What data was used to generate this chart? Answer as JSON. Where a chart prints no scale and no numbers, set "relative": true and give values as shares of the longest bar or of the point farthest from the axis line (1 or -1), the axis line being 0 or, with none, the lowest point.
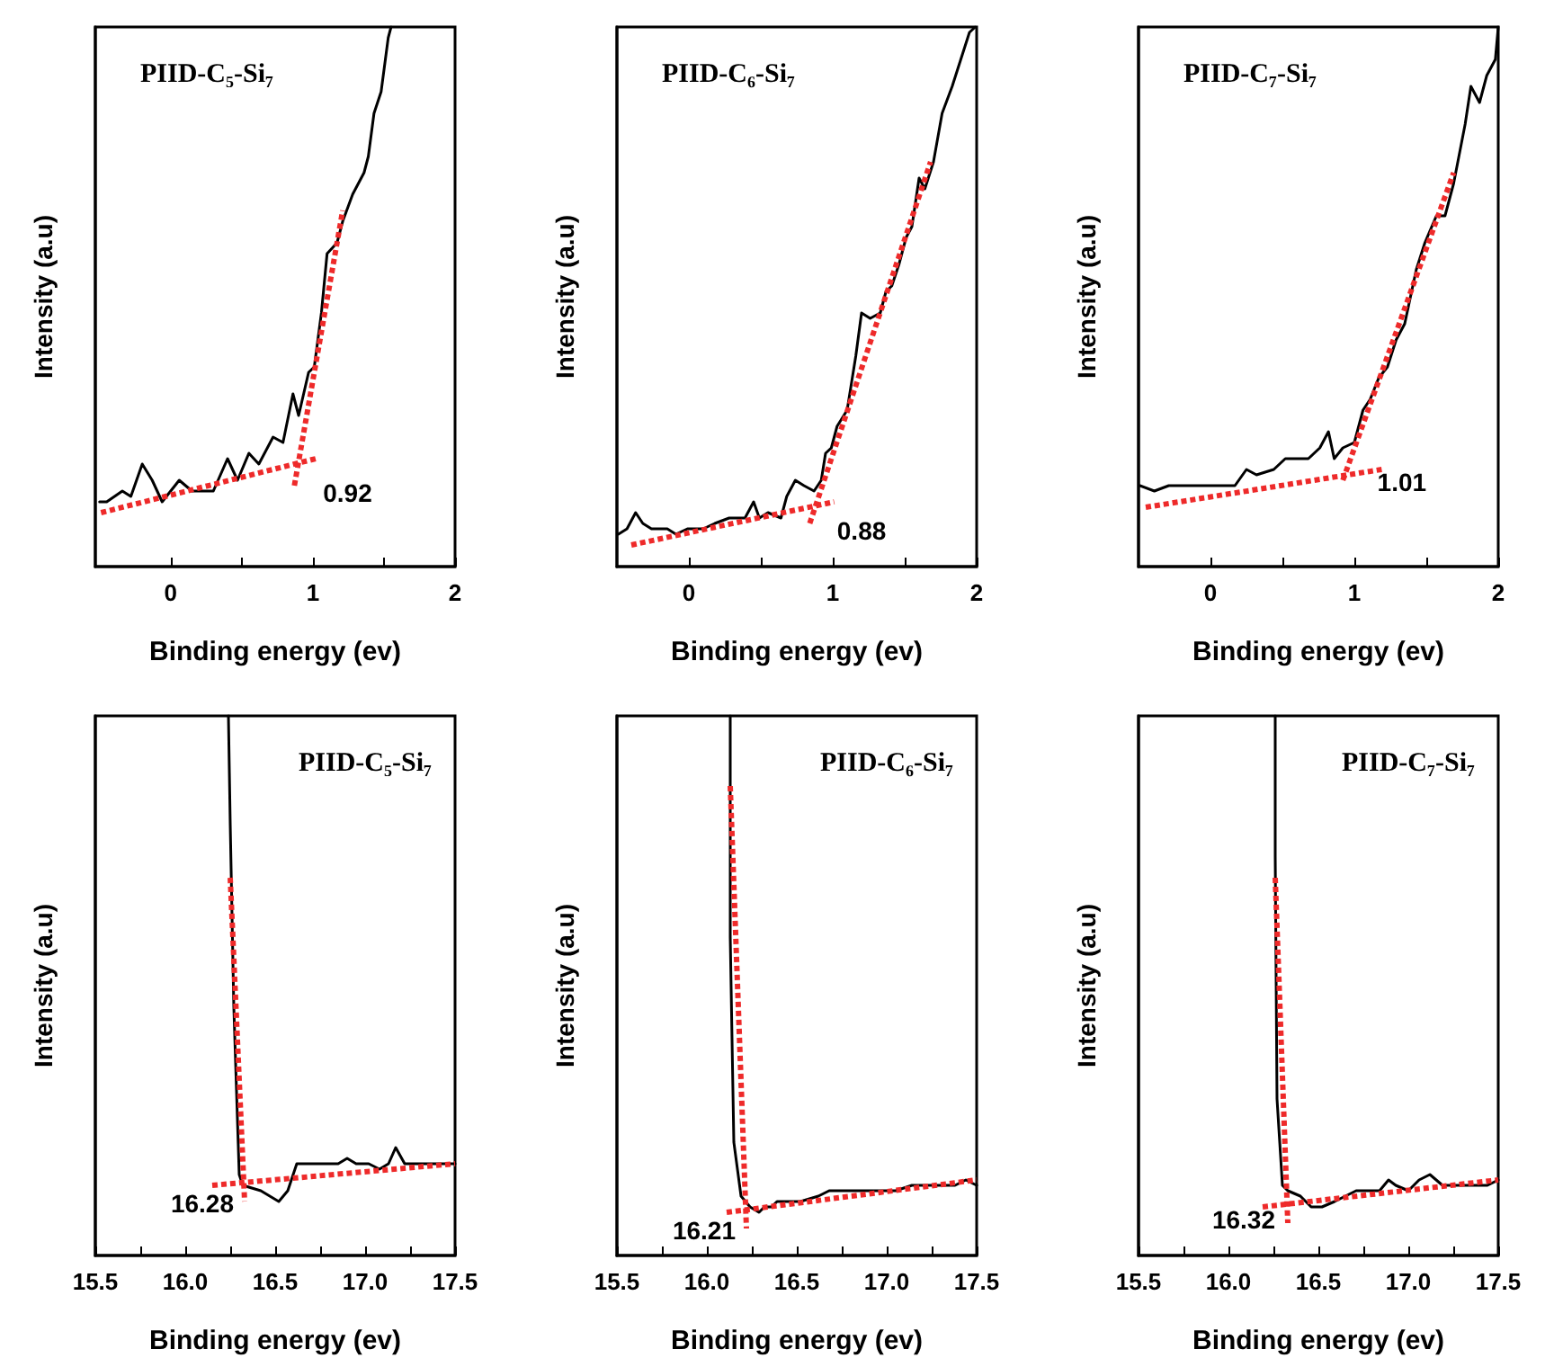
{
  "chart_data": [
    {
      "type": "line",
      "title": "PIID-C₅-Si₇",
      "xlabel": "Binding energy (ev)",
      "ylabel": "Intensity (a.u)",
      "relative": true,
      "marker": "none",
      "xlim": [
        -0.53,
        2
      ],
      "xticks": [
        0,
        {
          "value": 0.5,
          "label": null
        },
        1,
        {
          "value": 1.5,
          "label": null
        },
        2
      ],
      "annotations": [
        {
          "text": "0.92",
          "x": 0.92,
          "y": 0.18
        }
      ],
      "series": [
        {
          "color": "#000000",
          "x": [
            -0.5,
            -0.45,
            -0.34,
            -0.28,
            -0.2,
            -0.13,
            -0.06,
            0.06,
            0.15,
            0.21,
            0.3,
            0.4,
            0.47,
            0.55,
            0.62,
            0.72,
            0.79,
            0.86,
            0.9,
            0.97,
            1.01,
            1.06,
            1.1,
            1.17,
            1.21,
            1.28,
            1.36,
            1.39,
            1.43,
            1.48,
            1.53,
            1.55
          ],
          "values": [
            0.12,
            0.12,
            0.14,
            0.13,
            0.19,
            0.16,
            0.12,
            0.16,
            0.14,
            0.14,
            0.14,
            0.2,
            0.16,
            0.21,
            0.19,
            0.24,
            0.23,
            0.32,
            0.28,
            0.36,
            0.37,
            0.47,
            0.58,
            0.6,
            0.64,
            0.69,
            0.73,
            0.76,
            0.84,
            0.88,
            0.98,
            1
          ]
        },
        {
          "type": "line",
          "line_style": "dotted",
          "color": "#ee2a2a",
          "x": [
            -0.49,
            1.02
          ],
          "values": [
            0.1,
            0.2
          ]
        },
        {
          "type": "line",
          "line_style": "dotted",
          "color": "#ee2a2a",
          "x": [
            0.87,
            1.21
          ],
          "values": [
            0.15,
            0.66
          ]
        }
      ]
    },
    {
      "type": "line",
      "title": "PIID-C₆-Si₇",
      "xlabel": "Binding energy (ev)",
      "ylabel": "Intensity (a.u)",
      "relative": true,
      "marker": "none",
      "xlim": [
        -0.5,
        2
      ],
      "xticks": [
        0,
        {
          "value": 0.5,
          "label": null
        },
        1,
        {
          "value": 1.5,
          "label": null
        },
        2
      ],
      "annotations": [
        {
          "text": "0.88",
          "x": 0.88,
          "y": 0.11
        }
      ],
      "series": [
        {
          "color": "#000000",
          "x": [
            -0.49,
            -0.43,
            -0.37,
            -0.32,
            -0.26,
            -0.2,
            -0.15,
            -0.09,
            -0.01,
            0.1,
            0.18,
            0.28,
            0.39,
            0.45,
            0.49,
            0.55,
            0.64,
            0.68,
            0.74,
            0.8,
            0.87,
            0.92,
            0.95,
            0.99,
            1.03,
            1.1,
            1.16,
            1.2,
            1.26,
            1.33,
            1.37,
            1.41,
            1.46,
            1.51,
            1.55,
            1.6,
            1.64,
            1.7,
            1.76,
            1.83,
            1.89,
            1.95,
            1.99
          ],
          "values": [
            0.06,
            0.07,
            0.1,
            0.08,
            0.07,
            0.07,
            0.07,
            0.06,
            0.07,
            0.07,
            0.08,
            0.09,
            0.09,
            0.12,
            0.09,
            0.1,
            0.09,
            0.13,
            0.16,
            0.15,
            0.14,
            0.16,
            0.21,
            0.22,
            0.26,
            0.29,
            0.39,
            0.47,
            0.46,
            0.47,
            0.51,
            0.52,
            0.56,
            0.61,
            0.63,
            0.72,
            0.7,
            0.75,
            0.84,
            0.89,
            0.94,
            0.99,
            1
          ]
        },
        {
          "type": "line",
          "line_style": "dotted",
          "color": "#ee2a2a",
          "x": [
            -0.4,
            1.01
          ],
          "values": [
            0.04,
            0.12
          ]
        },
        {
          "type": "line",
          "line_style": "dotted",
          "color": "#ee2a2a",
          "x": [
            0.84,
            1.68
          ],
          "values": [
            0.08,
            0.75
          ]
        }
      ]
    },
    {
      "type": "line",
      "title": "PIID-C₇-Si₇",
      "xlabel": "Binding energy (ev)",
      "ylabel": "Intensity (a.u)",
      "relative": true,
      "marker": "none",
      "xlim": [
        -0.5,
        2
      ],
      "xticks": [
        0,
        {
          "value": 0.5,
          "label": null
        },
        1,
        {
          "value": 1.5,
          "label": null
        },
        2
      ],
      "annotations": [
        {
          "text": "1.01",
          "x": 1.01,
          "y": 0.2
        }
      ],
      "series": [
        {
          "color": "#000000",
          "x": [
            -0.49,
            -0.39,
            -0.29,
            -0.23,
            -0.11,
            -0.05,
            0.05,
            0.17,
            0.25,
            0.32,
            0.44,
            0.52,
            0.6,
            0.68,
            0.76,
            0.82,
            0.86,
            0.92,
            1.0,
            1.06,
            1.11,
            1.17,
            1.23,
            1.29,
            1.35,
            1.43,
            1.49,
            1.57,
            1.63,
            1.69,
            1.77,
            1.81,
            1.87,
            1.92,
            1.98,
            2.0
          ],
          "values": [
            0.15,
            0.14,
            0.15,
            0.15,
            0.15,
            0.15,
            0.15,
            0.15,
            0.18,
            0.17,
            0.18,
            0.2,
            0.2,
            0.2,
            0.22,
            0.25,
            0.2,
            0.22,
            0.23,
            0.29,
            0.31,
            0.35,
            0.37,
            0.42,
            0.45,
            0.55,
            0.6,
            0.65,
            0.65,
            0.71,
            0.82,
            0.89,
            0.86,
            0.91,
            0.94,
            1
          ]
        },
        {
          "type": "line",
          "line_style": "dotted",
          "color": "#ee2a2a",
          "x": [
            -0.45,
            1.19
          ],
          "values": [
            0.11,
            0.18
          ]
        },
        {
          "type": "line",
          "line_style": "dotted",
          "color": "#ee2a2a",
          "x": [
            0.92,
            1.69
          ],
          "values": [
            0.16,
            0.73
          ]
        }
      ]
    },
    {
      "type": "line",
      "title": "PIID-C₅-Si₇",
      "xlabel": "Binding energy (ev)",
      "ylabel": "Intensity (a.u)",
      "relative": true,
      "marker": "none",
      "xlim": [
        15.5,
        17.5
      ],
      "xticks": [
        15.5,
        {
          "value": 15.75,
          "label": null
        },
        {
          "value": 16,
          "label": "16.0"
        },
        {
          "value": 16.25,
          "label": null
        },
        16.5,
        {
          "value": 16.75,
          "label": null
        },
        {
          "value": 17,
          "label": "17.0"
        },
        {
          "value": 17.25,
          "label": null
        },
        17.5
      ],
      "annotations": [
        {
          "text": "16.28",
          "x": 16.31,
          "y": 0.14
        }
      ],
      "series": [
        {
          "color": "#000000",
          "x": [
            16.24,
            16.25,
            16.27,
            16.3,
            16.32,
            16.42,
            16.52,
            16.57,
            16.62,
            16.68,
            16.72,
            16.78,
            16.85,
            16.9,
            16.95,
            17.02,
            17.08,
            17.13,
            17.17,
            17.22,
            17.28,
            17.35,
            17.42,
            17.5
          ],
          "values": [
            1,
            0.8,
            0.46,
            0.15,
            0.13,
            0.12,
            0.1,
            0.12,
            0.17,
            0.17,
            0.17,
            0.17,
            0.17,
            0.18,
            0.17,
            0.17,
            0.16,
            0.17,
            0.2,
            0.17,
            0.17,
            0.17,
            0.17,
            0.17
          ]
        },
        {
          "type": "line",
          "line_style": "dotted",
          "color": "#ee2a2a",
          "x": [
            16.25,
            16.33
          ],
          "values": [
            0.7,
            0.1
          ]
        },
        {
          "type": "line",
          "line_style": "dotted",
          "color": "#ee2a2a",
          "x": [
            16.15,
            17.5
          ],
          "values": [
            0.13,
            0.17
          ]
        }
      ]
    },
    {
      "type": "line",
      "title": "PIID-C₆-Si₇",
      "xlabel": "Binding energy (ev)",
      "ylabel": "Intensity (a.u)",
      "relative": true,
      "marker": "none",
      "xlim": [
        15.5,
        17.5
      ],
      "xticks": [
        15.5,
        {
          "value": 15.75,
          "label": null
        },
        {
          "value": 16,
          "label": "16.0"
        },
        {
          "value": 16.25,
          "label": null
        },
        16.5,
        {
          "value": 16.75,
          "label": null
        },
        {
          "value": 17,
          "label": "17.0"
        },
        {
          "value": 17.25,
          "label": null
        },
        17.5
      ],
      "annotations": [
        {
          "text": "16.21",
          "x": 16.2,
          "y": 0.09
        }
      ],
      "series": [
        {
          "color": "#000000",
          "x": [
            16.13,
            16.13,
            16.15,
            16.19,
            16.24,
            16.29,
            16.32,
            16.36,
            16.39,
            16.44,
            16.52,
            16.62,
            16.68,
            16.75,
            16.85,
            16.95,
            17.05,
            17.14,
            17.28,
            17.38,
            17.44,
            17.5
          ],
          "values": [
            1,
            0.59,
            0.21,
            0.11,
            0.09,
            0.08,
            0.09,
            0.09,
            0.1,
            0.1,
            0.1,
            0.11,
            0.12,
            0.12,
            0.12,
            0.12,
            0.12,
            0.13,
            0.13,
            0.13,
            0.14,
            0.13
          ]
        },
        {
          "type": "line",
          "line_style": "dotted",
          "color": "#ee2a2a",
          "x": [
            16.13,
            16.22
          ],
          "values": [
            0.87,
            0.05
          ]
        },
        {
          "type": "line",
          "line_style": "dotted",
          "color": "#ee2a2a",
          "x": [
            16.11,
            17.5
          ],
          "values": [
            0.08,
            0.14
          ]
        }
      ]
    },
    {
      "type": "line",
      "title": "PIID-C₇-Si₇",
      "xlabel": "Binding energy (ev)",
      "ylabel": "Intensity (a.u)",
      "relative": true,
      "marker": "none",
      "xlim": [
        15.5,
        17.5
      ],
      "xticks": [
        15.5,
        {
          "value": 15.75,
          "label": null
        },
        {
          "value": 16,
          "label": "16.0"
        },
        {
          "value": 16.25,
          "label": null
        },
        16.5,
        {
          "value": 16.75,
          "label": null
        },
        {
          "value": 17,
          "label": "17.0"
        },
        {
          "value": 17.25,
          "label": null
        },
        17.5
      ],
      "annotations": [
        {
          "text": "16.32",
          "x": 16.3,
          "y": 0.11
        }
      ],
      "series": [
        {
          "color": "#000000",
          "x": [
            16.26,
            16.26,
            16.27,
            16.3,
            16.33,
            16.4,
            16.46,
            16.52,
            16.59,
            16.65,
            16.71,
            16.78,
            16.84,
            16.89,
            16.93,
            17.0,
            17.06,
            17.12,
            17.19,
            17.28,
            17.37,
            17.44,
            17.5
          ],
          "values": [
            1,
            0.74,
            0.29,
            0.13,
            0.12,
            0.11,
            0.09,
            0.09,
            0.1,
            0.11,
            0.12,
            0.12,
            0.12,
            0.14,
            0.13,
            0.12,
            0.14,
            0.15,
            0.13,
            0.13,
            0.13,
            0.13,
            0.14
          ]
        },
        {
          "type": "line",
          "line_style": "dotted",
          "color": "#ee2a2a",
          "x": [
            16.26,
            16.33
          ],
          "values": [
            0.7,
            0.06
          ]
        },
        {
          "type": "line",
          "line_style": "dotted",
          "color": "#ee2a2a",
          "x": [
            16.19,
            17.5
          ],
          "values": [
            0.09,
            0.14
          ]
        }
      ]
    }
  ]
}
